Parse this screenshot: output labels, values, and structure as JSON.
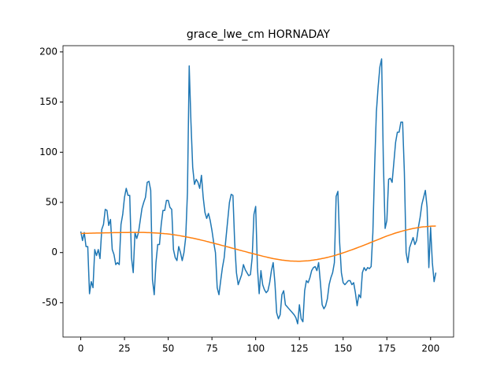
{
  "chart_data": {
    "type": "line",
    "title": "grace_lwe_cm HORNADAY",
    "x": [
      0,
      1,
      2,
      3,
      4,
      5,
      6,
      7,
      8,
      9,
      10,
      11,
      12,
      13,
      14,
      15,
      16,
      17,
      18,
      19,
      20,
      21,
      22,
      23,
      24,
      25,
      26,
      27,
      28,
      29,
      30,
      31,
      32,
      33,
      34,
      35,
      36,
      37,
      38,
      39,
      40,
      41,
      42,
      43,
      44,
      45,
      46,
      47,
      48,
      49,
      50,
      51,
      52,
      53,
      54,
      55,
      56,
      57,
      58,
      59,
      60,
      61,
      62,
      63,
      64,
      65,
      66,
      67,
      68,
      69,
      70,
      71,
      72,
      73,
      74,
      75,
      76,
      77,
      78,
      79,
      80,
      81,
      82,
      83,
      84,
      85,
      86,
      87,
      88,
      89,
      90,
      91,
      92,
      93,
      94,
      95,
      96,
      97,
      98,
      99,
      100,
      101,
      102,
      103,
      104,
      105,
      106,
      107,
      108,
      109,
      110,
      111,
      112,
      113,
      114,
      115,
      116,
      117,
      118,
      119,
      120,
      121,
      122,
      123,
      124,
      125,
      126,
      127,
      128,
      129,
      130,
      131,
      132,
      133,
      134,
      135,
      136,
      137,
      138,
      139,
      140,
      141,
      142,
      143,
      144,
      145,
      146,
      147,
      148,
      149,
      150,
      151,
      152,
      153,
      154,
      155,
      156,
      157,
      158,
      159,
      160,
      161,
      162,
      163,
      164,
      165,
      166,
      167,
      168,
      169,
      170,
      171,
      172,
      173,
      174,
      175,
      176,
      177,
      178,
      179,
      180,
      181,
      182,
      183,
      184,
      185,
      186,
      187,
      188,
      189,
      190,
      191,
      192,
      193,
      194,
      195,
      196,
      197,
      198,
      199,
      200,
      201,
      202,
      203
    ],
    "series": [
      {
        "color": "#1f77b4",
        "values": [
          21,
          12,
          20,
          6,
          6,
          -41,
          -29,
          -35,
          3,
          -3,
          3,
          -6,
          23,
          28,
          43,
          42,
          27,
          33,
          3,
          -2,
          -12,
          -10,
          -12,
          28,
          38,
          55,
          64,
          57,
          57,
          -5,
          -20,
          20,
          14,
          20,
          32,
          44,
          50,
          55,
          70,
          71,
          62,
          -27,
          -42,
          -10,
          8,
          8,
          28,
          42,
          42,
          52,
          52,
          45,
          43,
          3,
          -5,
          -8,
          6,
          0,
          -8,
          0,
          15,
          60,
          186,
          130,
          85,
          68,
          73,
          70,
          64,
          77,
          55,
          40,
          34,
          39,
          32,
          22,
          10,
          0,
          -35,
          -42,
          -28,
          -15,
          -5,
          14,
          32,
          50,
          58,
          57,
          10,
          -20,
          -32,
          -27,
          -22,
          -12,
          -17,
          -20,
          -23,
          -22,
          -5,
          38,
          46,
          -15,
          -41,
          -18,
          -32,
          -37,
          -40,
          -38,
          -30,
          -18,
          -10,
          -30,
          -60,
          -66,
          -62,
          -42,
          -38,
          -52,
          -54,
          -56,
          -58,
          -60,
          -62,
          -65,
          -71,
          -52,
          -66,
          -69,
          -38,
          -28,
          -30,
          -25,
          -18,
          -15,
          -14,
          -18,
          -10,
          -30,
          -52,
          -56,
          -53,
          -46,
          -32,
          -25,
          -20,
          -10,
          56,
          61,
          10,
          -20,
          -30,
          -32,
          -30,
          -28,
          -28,
          -32,
          -30,
          -40,
          -53,
          -42,
          -45,
          -20,
          -15,
          -18,
          -15,
          -16,
          -14,
          20,
          85,
          140,
          165,
          185,
          193,
          90,
          24,
          32,
          73,
          74,
          70,
          90,
          110,
          120,
          120,
          130,
          130,
          80,
          0,
          -10,
          5,
          10,
          15,
          8,
          12,
          25,
          35,
          48,
          55,
          62,
          45,
          -15,
          25,
          -10,
          -29,
          -20
        ]
      },
      {
        "color": "#ff7f0e",
        "values": [
          19,
          19.1,
          19.1,
          19.2,
          19.2,
          19.3,
          19.3,
          19.4,
          19.4,
          19.5,
          19.5,
          19.5,
          19.6,
          19.6,
          19.7,
          19.7,
          19.7,
          19.8,
          19.8,
          19.9,
          19.9,
          19.9,
          19.9,
          20,
          20,
          20,
          20,
          20,
          20.1,
          20.1,
          20.1,
          20.1,
          20.1,
          20.1,
          20.1,
          20.1,
          20.1,
          20,
          19.9,
          19.9,
          19.8,
          19.7,
          19.6,
          19.5,
          19.4,
          19.3,
          19.1,
          19,
          18.8,
          18.7,
          18.5,
          18.3,
          18,
          17.8,
          17.5,
          17.3,
          17,
          16.7,
          16.4,
          16.1,
          15.8,
          15.4,
          15.1,
          14.7,
          14.4,
          14,
          13.6,
          13.2,
          12.8,
          12.4,
          12,
          11.6,
          11.1,
          10.7,
          10.2,
          9.8,
          9.3,
          8.9,
          8.4,
          8,
          7.5,
          7,
          6.6,
          6.1,
          5.7,
          5.2,
          4.7,
          4.2,
          3.8,
          3.3,
          2.8,
          2.3,
          1.9,
          1.4,
          1,
          0.5,
          0,
          -0.4,
          -0.9,
          -1.3,
          -1.8,
          -2.2,
          -2.7,
          -3.1,
          -3.6,
          -4,
          -4.4,
          -4.8,
          -5.2,
          -5.6,
          -6,
          -6.3,
          -6.6,
          -6.9,
          -7.2,
          -7.5,
          -7.7,
          -7.9,
          -8.1,
          -8.3,
          -8.5,
          -8.5,
          -8.6,
          -8.6,
          -8.7,
          -8.7,
          -8.6,
          -8.5,
          -8.4,
          -8.3,
          -8.2,
          -8,
          -7.7,
          -7.5,
          -7.2,
          -7,
          -6.6,
          -6.3,
          -5.9,
          -5.6,
          -5.2,
          -4.8,
          -4.4,
          -3.9,
          -3.5,
          -3,
          -2.5,
          -1.9,
          -1.4,
          -0.8,
          -0.3,
          0.3,
          0.9,
          1.6,
          2.2,
          2.8,
          3.4,
          4.1,
          4.7,
          5.4,
          6,
          6.7,
          7.4,
          8.1,
          8.8,
          9.5,
          10.2,
          10.9,
          11.6,
          12.3,
          13,
          13.7,
          14.4,
          15.1,
          15.8,
          16.5,
          17.1,
          17.7,
          18.3,
          18.9,
          19.5,
          20,
          20.5,
          21,
          21.5,
          22,
          22.4,
          22.8,
          23.2,
          23.6,
          24,
          24.3,
          24.6,
          24.9,
          25.2,
          25.5,
          25.7,
          25.8,
          26,
          26.1,
          26.3,
          26.4,
          26.4,
          26.5
        ]
      }
    ],
    "xlim": [
      -10.15,
      213.15
    ],
    "xticks": [
      0,
      25,
      50,
      75,
      100,
      125,
      150,
      175,
      200
    ],
    "ylim": [
      -84.2,
      206.2
    ],
    "yticks": [
      -50,
      0,
      50,
      100,
      150,
      200
    ]
  }
}
